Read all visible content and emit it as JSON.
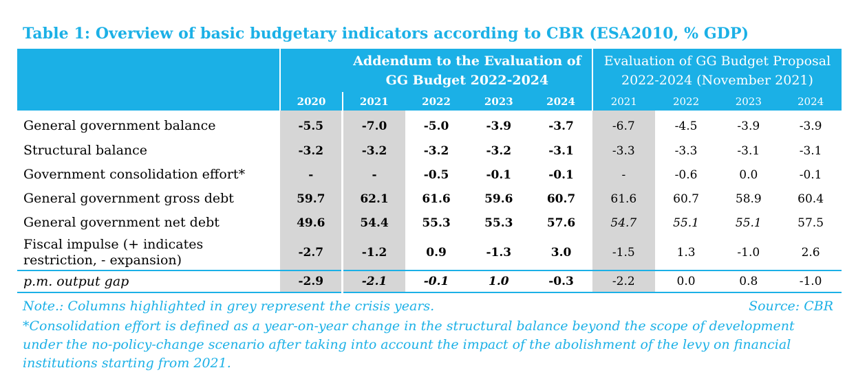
{
  "title": "Table 1: Overview of basic budgetary indicators according to CBR (ESA2010, % GDP)",
  "header": {
    "group_addendum": "Addendum to the Evaluation of GG Budget 2022-2024",
    "group_evaluation": "Evaluation of GG Budget Proposal 2022-2024 (November 2021)",
    "years": [
      "2020",
      "2021",
      "2022",
      "2023",
      "2024",
      "2021",
      "2022",
      "2023",
      "2024"
    ]
  },
  "rows": [
    {
      "label": "General government balance",
      "values": [
        "-5.5",
        "-7.0",
        "-5.0",
        "-3.9",
        "-3.7",
        "-6.7",
        "-4.5",
        "-3.9",
        "-3.9"
      ]
    },
    {
      "label": "Structural balance",
      "values": [
        "-3.2",
        "-3.2",
        "-3.2",
        "-3.2",
        "-3.1",
        "-3.3",
        "-3.3",
        "-3.1",
        "-3.1"
      ]
    },
    {
      "label": "Government consolidation effort*",
      "values": [
        "-",
        "-",
        "-0.5",
        "-0.1",
        "-0.1",
        "-",
        "-0.6",
        "0.0",
        "-0.1"
      ]
    },
    {
      "label": "General government gross debt",
      "values": [
        "59.7",
        "62.1",
        "61.6",
        "59.6",
        "60.7",
        "61.6",
        "60.7",
        "58.9",
        "60.4"
      ]
    },
    {
      "label": "General government net debt",
      "values": [
        "49.6",
        "54.4",
        "55.3",
        "55.3",
        "57.6",
        "54.7",
        "55.1",
        "55.1",
        "57.5"
      ]
    },
    {
      "label": "Fiscal impulse (+ indicates restriction, - expansion)",
      "values": [
        "-2.7",
        "-1.2",
        "0.9",
        "-1.3",
        "3.0",
        "-1.5",
        "1.3",
        "-1.0",
        "2.6"
      ]
    },
    {
      "label": "p.m.  output gap",
      "values": [
        "-2.9",
        "-2.1",
        "-0.1",
        "1.0",
        "-0.3",
        "-2.2",
        "0.0",
        "0.8",
        "-1.0"
      ]
    }
  ],
  "note": "Note.: Columns highlighted in grey represent the crisis years.",
  "source": "Source: CBR",
  "footnote": "*Consolidation effort is defined as a year-on-year change in the structural balance beyond the scope of development under the no-policy-change scenario after taking into account the impact of the abolishment of the levy on financial institutions starting from 2021."
}
